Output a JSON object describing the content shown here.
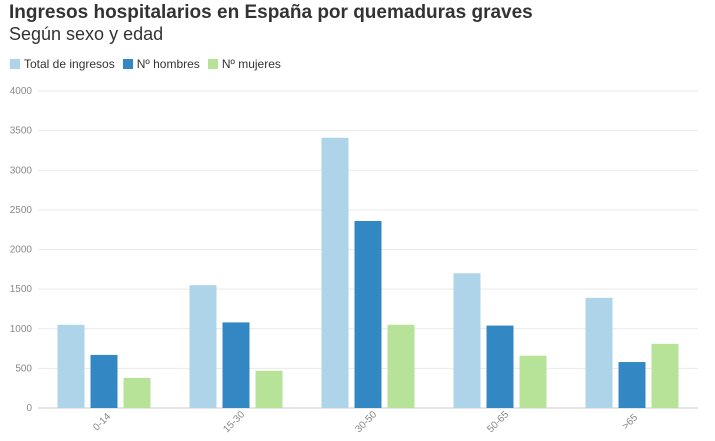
{
  "title": "Ingresos hospitalarios en España por quemaduras graves",
  "subtitle": "Según sexo y edad",
  "colors": {
    "total": "#aed4e9",
    "hombres": "#3388c3",
    "mujeres": "#b7e398"
  },
  "chart_data": {
    "type": "bar",
    "title": "Ingresos hospitalarios en España por quemaduras graves",
    "subtitle": "Según sexo y edad",
    "xlabel": "",
    "ylabel": "",
    "categories": [
      "0-14",
      "15-30",
      "30-50",
      "50-65",
      ">65"
    ],
    "series": [
      {
        "name": "Total de ingresos",
        "values": [
          1050,
          1550,
          3410,
          1700,
          1390
        ]
      },
      {
        "name": "Nº hombres",
        "values": [
          670,
          1080,
          2360,
          1040,
          580
        ]
      },
      {
        "name": "Nº mujeres",
        "values": [
          380,
          470,
          1050,
          660,
          810
        ]
      }
    ],
    "ylim": [
      0,
      4000
    ],
    "yticks": [
      "0",
      "500",
      "1000",
      "1500",
      "2000",
      "2500",
      "3000",
      "3500",
      "4000"
    ],
    "grid": true,
    "legend_position": "top-left"
  }
}
